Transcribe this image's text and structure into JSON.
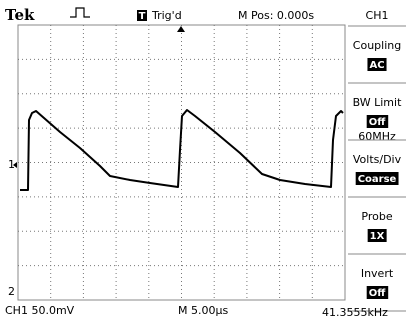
{
  "header": {
    "brand": "Tek",
    "trigger_icon": "T",
    "trigger_status": "Trig'd",
    "position": "M Pos: 0.000s",
    "channel": "CH1"
  },
  "menu": [
    {
      "label": "Coupling",
      "value": "AC"
    },
    {
      "label": "BW Limit",
      "value": "Off",
      "extra": "60MHz"
    },
    {
      "label": "Volts/Div",
      "value": "Coarse"
    },
    {
      "label": "Probe",
      "value": "1X"
    },
    {
      "label": "Invert",
      "value": "Off"
    }
  ],
  "markers": {
    "channel1": "1",
    "channel2": "2"
  },
  "footer": {
    "channel_scale": "CH1  50.0mV",
    "time_scale": "M 5.00µs",
    "frequency": "41.3555kHz"
  }
}
